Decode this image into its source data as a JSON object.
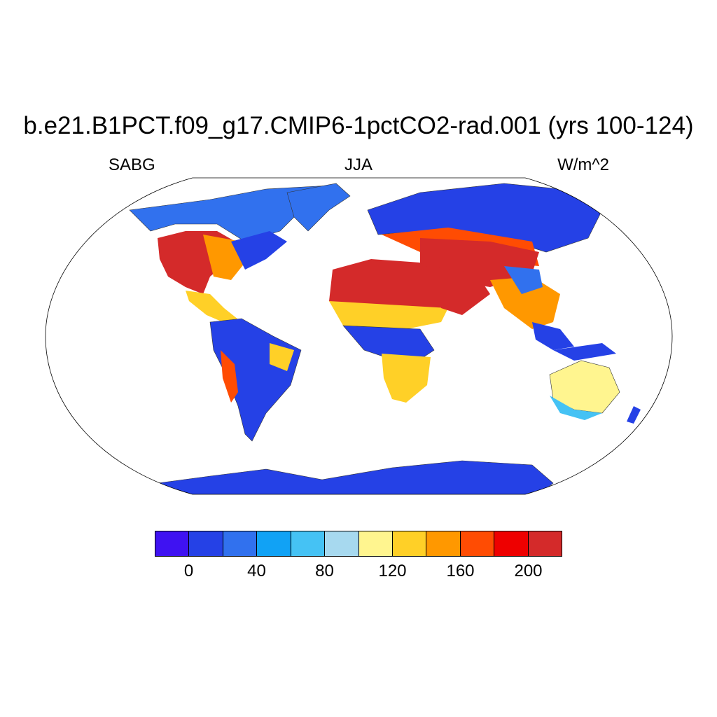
{
  "title": "b.e21.B1PCT.f09_g17.CMIP6-1pctCO2-rad.001 (yrs 100-124)",
  "left_label": "SABG",
  "center_label": "JJA",
  "right_label": "W/m^2",
  "colorbar": {
    "colors": [
      "#3f12f2",
      "#2541e6",
      "#3171ee",
      "#11a2f5",
      "#45c2f4",
      "#a7d9ef",
      "#fff58f",
      "#ffd027",
      "#ff9800",
      "#ff4c03",
      "#ee0000",
      "#d42a2a"
    ],
    "labels": [
      "0",
      "40",
      "80",
      "120",
      "160",
      "200"
    ]
  }
}
